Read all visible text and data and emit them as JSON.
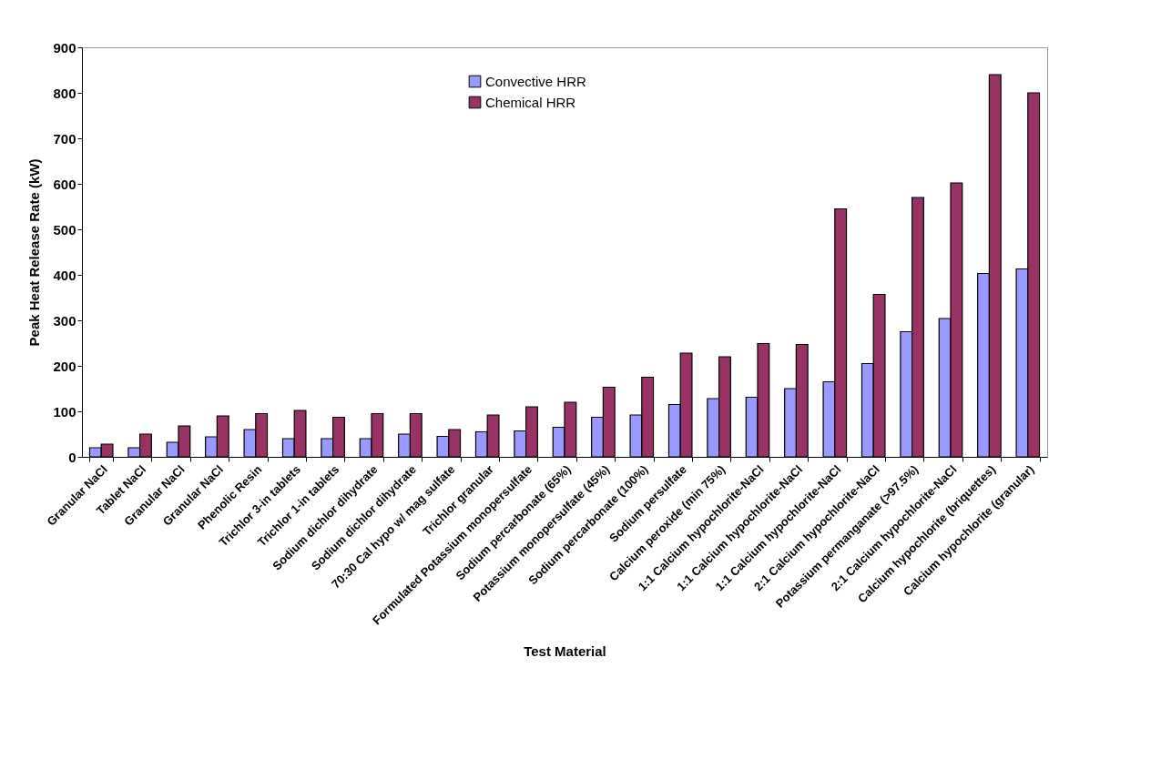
{
  "chart_data": {
    "type": "bar",
    "xlabel": "Test Material",
    "ylabel": "Peak Heat Release Rate (kW)",
    "categories": [
      "Granular NaCl",
      "Tablet NaCl",
      "Granular NaCl",
      "Granular NaCl",
      "Phenolic Resin",
      "Trichlor 3-in tablets",
      "Trichlor 1-in tablets",
      "Sodium dichlor dihydrate",
      "Sodium dichlor dihydrate",
      "70:30 Cal hypo w/ mag sulfate",
      "Trichlor granular",
      "Formulated Potassium monopersulfate",
      "Sodium percarbonate (65%)",
      "Potassium monopersulfate (45%)",
      "Sodium percarbonate (100%)",
      "Sodium persulfate",
      "Calcium peroxide (min 75%)",
      "1:1 Calcium hypochlorite-NaCl",
      "1:1 Calcium hypochlorite-NaCl",
      "1:1 Calcium hypochlorite-NaCl",
      "2:1 Calcium hypochlorite-NaCl",
      "Potassium permanganate (>97.5%)",
      "2:1 Calcium hypochlorite-NaCl",
      "Calcium hypochlorite (briquettes)",
      "Calcium hypochlorite (granular)"
    ],
    "series": [
      {
        "name": "Convective HRR",
        "color": "#9999ff",
        "values": [
          20,
          20,
          32,
          44,
          60,
          40,
          40,
          40,
          50,
          45,
          55,
          57,
          65,
          87,
          92,
          115,
          128,
          131,
          150,
          165,
          205,
          275,
          304,
          403,
          413
        ]
      },
      {
        "name": "Chemical HRR",
        "color": "#993366",
        "values": [
          28,
          50,
          68,
          90,
          95,
          102,
          87,
          95,
          95,
          60,
          92,
          110,
          120,
          153,
          175,
          228,
          220,
          249,
          247,
          545,
          357,
          570,
          602,
          840,
          800
        ]
      }
    ],
    "ylim": [
      0,
      900
    ],
    "yticks": [
      0,
      100,
      200,
      300,
      400,
      500,
      600,
      700,
      800,
      900
    ],
    "legend": "top"
  }
}
